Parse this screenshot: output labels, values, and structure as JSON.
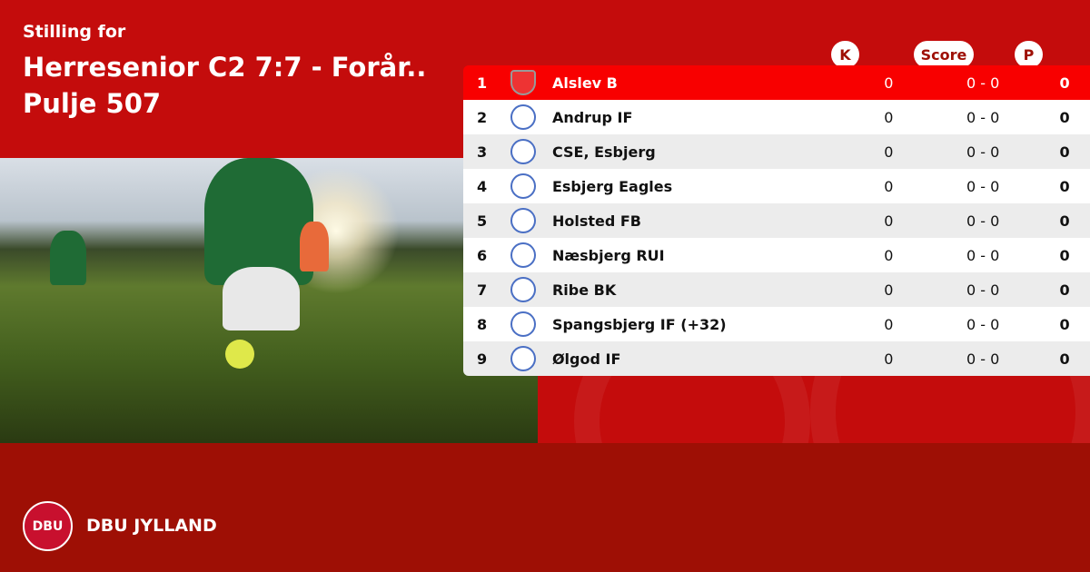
{
  "header": {
    "subtitle": "Stilling for",
    "title": "Herresenior C2 7:7 - Forår..",
    "pool": "Pulje 507"
  },
  "columns": {
    "k": "K",
    "score": "Score",
    "p": "P"
  },
  "rows": [
    {
      "pos": "1",
      "team": "Alslev B",
      "k": "0",
      "score": "0 - 0",
      "p": "0",
      "highlight": true
    },
    {
      "pos": "2",
      "team": "Andrup IF",
      "k": "0",
      "score": "0 - 0",
      "p": "0"
    },
    {
      "pos": "3",
      "team": "CSE, Esbjerg",
      "k": "0",
      "score": "0 - 0",
      "p": "0"
    },
    {
      "pos": "4",
      "team": "Esbjerg Eagles",
      "k": "0",
      "score": "0 - 0",
      "p": "0"
    },
    {
      "pos": "5",
      "team": "Holsted FB",
      "k": "0",
      "score": "0 - 0",
      "p": "0"
    },
    {
      "pos": "6",
      "team": "Næsbjerg RUI",
      "k": "0",
      "score": "0 - 0",
      "p": "0"
    },
    {
      "pos": "7",
      "team": "Ribe BK",
      "k": "0",
      "score": "0 - 0",
      "p": "0"
    },
    {
      "pos": "8",
      "team": "Spangsbjerg IF (+32)",
      "k": "0",
      "score": "0 - 0",
      "p": "0"
    },
    {
      "pos": "9",
      "team": "Ølgod IF",
      "k": "0",
      "score": "0 - 0",
      "p": "0"
    }
  ],
  "footer": {
    "brand": "DBU JYLLAND",
    "logo_text": "DBU"
  },
  "colors": {
    "primary": "#c40c0c",
    "footer": "#9e0f05",
    "highlight": "#f80000"
  }
}
